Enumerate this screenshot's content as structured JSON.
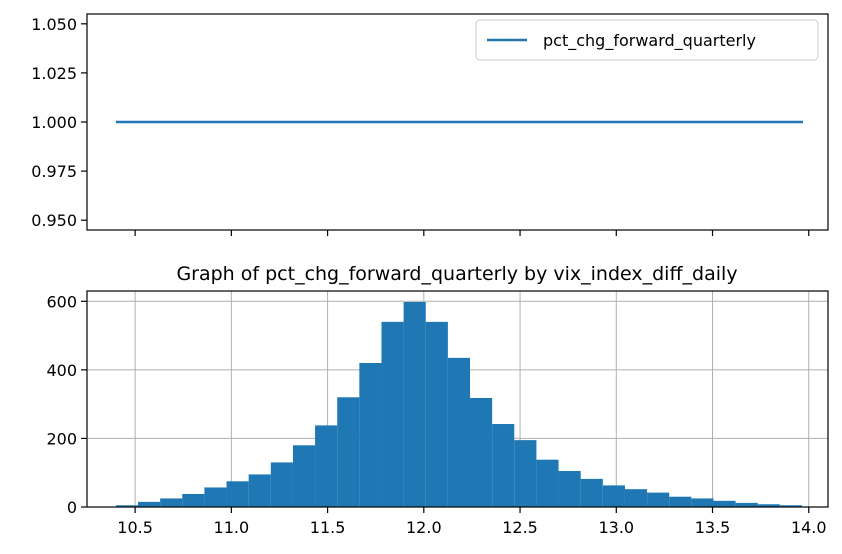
{
  "chart_data": [
    {
      "type": "line",
      "title": "",
      "xlabel": "",
      "ylabel": "",
      "ylim": [
        0.945,
        1.055
      ],
      "xlim": [
        10.25,
        14.1
      ],
      "yticks": [
        0.95,
        0.975,
        1.0,
        1.025,
        1.05
      ],
      "ytick_labels": [
        "0.950",
        "0.975",
        "1.000",
        "1.025",
        "1.050"
      ],
      "xticks": [
        10.5,
        11.0,
        11.5,
        12.0,
        12.5,
        13.0,
        13.5,
        14.0
      ],
      "xtick_labels_visible": false,
      "grid": false,
      "legend": {
        "placement": "top-right"
      },
      "series": [
        {
          "name": "pct_chg_forward_quarterly",
          "color": "#1f77b4",
          "x": [
            10.4,
            13.97
          ],
          "values": [
            1.0,
            1.0
          ]
        }
      ]
    },
    {
      "type": "bar",
      "subtype": "histogram",
      "title": "Graph of pct_chg_forward_quarterly by vix_index_diff_daily",
      "xlabel": "",
      "ylabel": "",
      "xlim": [
        10.25,
        14.1
      ],
      "ylim": [
        0,
        630
      ],
      "xticks": [
        10.5,
        11.0,
        11.5,
        12.0,
        12.5,
        13.0,
        13.5,
        14.0
      ],
      "xtick_labels": [
        "10.5",
        "11.0",
        "11.5",
        "12.0",
        "12.5",
        "13.0",
        "13.5",
        "14.0"
      ],
      "yticks": [
        0,
        200,
        400,
        600
      ],
      "ytick_labels": [
        "0",
        "200",
        "400",
        "600"
      ],
      "grid": true,
      "color": "#1f77b4",
      "bin_edges": [
        10.4,
        10.515,
        10.63,
        10.745,
        10.86,
        10.975,
        11.09,
        11.205,
        11.32,
        11.435,
        11.55,
        11.665,
        11.78,
        11.895,
        12.01,
        12.125,
        12.24,
        12.355,
        12.47,
        12.585,
        12.7,
        12.815,
        12.93,
        13.045,
        13.16,
        13.275,
        13.39,
        13.505,
        13.62,
        13.735,
        13.85,
        13.965
      ],
      "values": [
        5,
        15,
        25,
        38,
        57,
        75,
        95,
        130,
        180,
        238,
        320,
        420,
        540,
        598,
        540,
        435,
        318,
        242,
        195,
        138,
        105,
        82,
        63,
        52,
        42,
        30,
        25,
        18,
        12,
        8,
        5
      ]
    }
  ]
}
